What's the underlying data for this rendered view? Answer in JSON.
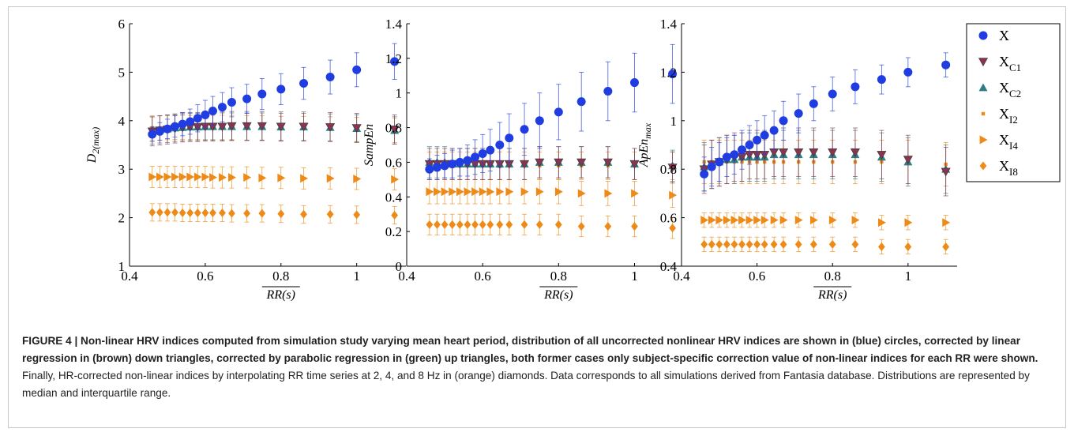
{
  "caption": {
    "bold": "FIGURE 4 | Non-linear HRV indices computed from simulation study varying mean heart period, distribution of all uncorrected nonlinear HRV indices are shown in (blue) circles, corrected by linear regression in (brown) down triangles, corrected by parabolic regression in (green) up triangles, both former cases only subject-specific correction value of non-linear indices for each RR were shown.",
    "normal": " Finally, HR-corrected non-linear indices by interpolating RR time series at 2, 4, and 8 Hz in (orange) diamonds. Data corresponds to all simulations derived from Fantasia database. Distributions are represented by median and interquartile range."
  },
  "colors": {
    "X": "#1f3de0",
    "XC1": "#8a3550",
    "XC2": "#2e7d84",
    "I": "#ee8a17",
    "frame": "#c8c8c8"
  },
  "legend": [
    {
      "main": "X",
      "sub": "",
      "marker": "circle",
      "color": "#1f3de0"
    },
    {
      "main": "X",
      "sub": "C1",
      "marker": "down-triangle",
      "color": "#8a3550"
    },
    {
      "main": "X",
      "sub": "C2",
      "marker": "up-triangle",
      "color": "#2e7d84"
    },
    {
      "main": "X",
      "sub": "I2",
      "marker": "square",
      "color": "#ee8a17"
    },
    {
      "main": "X",
      "sub": "I4",
      "marker": "right-triangle",
      "color": "#ee8a17"
    },
    {
      "main": "X",
      "sub": "I8",
      "marker": "diamond",
      "color": "#ee8a17"
    }
  ],
  "chart_data": [
    {
      "type": "scatter",
      "ylabel_main": "D",
      "ylabel_sub": "2(max)",
      "xlabel": "RR(s)",
      "xlim": [
        0.4,
        1.13
      ],
      "ylim": [
        1,
        6
      ],
      "xticks": [
        "0.4",
        "0.6",
        "0.8",
        "1"
      ],
      "yticks": [
        "1",
        "2",
        "3",
        "4",
        "5",
        "6"
      ],
      "x": [
        0.46,
        0.48,
        0.5,
        0.52,
        0.54,
        0.56,
        0.58,
        0.6,
        0.62,
        0.645,
        0.67,
        0.71,
        0.75,
        0.8,
        0.86,
        0.93,
        1.0,
        1.1
      ],
      "series": [
        {
          "name": "X",
          "values": [
            3.72,
            3.78,
            3.83,
            3.88,
            3.93,
            3.98,
            4.05,
            4.12,
            4.2,
            4.28,
            4.38,
            4.45,
            4.55,
            4.65,
            4.77,
            4.9,
            5.05,
            5.22
          ],
          "err": [
            0.15,
            0.18,
            0.2,
            0.22,
            0.24,
            0.26,
            0.28,
            0.3,
            0.3,
            0.3,
            0.3,
            0.3,
            0.32,
            0.32,
            0.33,
            0.35,
            0.35,
            0.37
          ]
        },
        {
          "name": "X_C1",
          "values": [
            3.78,
            3.8,
            3.82,
            3.84,
            3.86,
            3.87,
            3.87,
            3.88,
            3.88,
            3.88,
            3.89,
            3.89,
            3.89,
            3.88,
            3.88,
            3.87,
            3.85,
            3.82
          ],
          "err": [
            0.3,
            0.3,
            0.3,
            0.3,
            0.3,
            0.3,
            0.3,
            0.3,
            0.3,
            0.3,
            0.3,
            0.3,
            0.3,
            0.3,
            0.3,
            0.3,
            0.3,
            0.3
          ]
        },
        {
          "name": "X_C2",
          "values": [
            3.8,
            3.82,
            3.83,
            3.85,
            3.86,
            3.87,
            3.87,
            3.88,
            3.88,
            3.88,
            3.88,
            3.88,
            3.88,
            3.87,
            3.87,
            3.86,
            3.84,
            3.8
          ],
          "err": [
            0.28,
            0.28,
            0.28,
            0.28,
            0.28,
            0.28,
            0.28,
            0.28,
            0.28,
            0.28,
            0.28,
            0.28,
            0.28,
            0.28,
            0.28,
            0.28,
            0.28,
            0.28
          ]
        },
        {
          "name": "X_I2",
          "values": [
            3.85,
            3.85,
            3.86,
            3.86,
            3.86,
            3.86,
            3.86,
            3.86,
            3.86,
            3.86,
            3.86,
            3.85,
            3.85,
            3.84,
            3.84,
            3.83,
            3.82,
            3.8
          ],
          "err": [
            0.25,
            0.25,
            0.25,
            0.25,
            0.25,
            0.25,
            0.25,
            0.25,
            0.25,
            0.25,
            0.25,
            0.25,
            0.25,
            0.25,
            0.25,
            0.25,
            0.25,
            0.25
          ]
        },
        {
          "name": "X_I4",
          "values": [
            2.84,
            2.84,
            2.84,
            2.84,
            2.84,
            2.84,
            2.84,
            2.84,
            2.83,
            2.83,
            2.83,
            2.83,
            2.82,
            2.82,
            2.81,
            2.81,
            2.8,
            2.79
          ],
          "err": [
            0.22,
            0.22,
            0.22,
            0.22,
            0.22,
            0.22,
            0.22,
            0.22,
            0.22,
            0.22,
            0.22,
            0.22,
            0.22,
            0.22,
            0.22,
            0.22,
            0.22,
            0.22
          ]
        },
        {
          "name": "X_I8",
          "values": [
            2.11,
            2.11,
            2.11,
            2.11,
            2.1,
            2.1,
            2.1,
            2.1,
            2.1,
            2.1,
            2.09,
            2.09,
            2.09,
            2.08,
            2.07,
            2.07,
            2.06,
            2.05
          ],
          "err": [
            0.18,
            0.18,
            0.18,
            0.18,
            0.18,
            0.18,
            0.18,
            0.18,
            0.18,
            0.18,
            0.18,
            0.18,
            0.18,
            0.18,
            0.18,
            0.18,
            0.18,
            0.18
          ]
        }
      ]
    },
    {
      "type": "scatter",
      "ylabel_main": "SampEn",
      "ylabel_sub": "",
      "xlabel": "RR(s)",
      "xlim": [
        0.4,
        1.13
      ],
      "ylim": [
        0,
        1.4
      ],
      "xticks": [
        "0.4",
        "0.6",
        "0.8",
        "1"
      ],
      "yticks": [
        "0",
        "0.2",
        "0.4",
        "0.6",
        "0.8",
        "1",
        "1.2",
        "1.4"
      ],
      "x": [
        0.46,
        0.48,
        0.5,
        0.52,
        0.54,
        0.56,
        0.58,
        0.6,
        0.62,
        0.645,
        0.67,
        0.71,
        0.75,
        0.8,
        0.86,
        0.93,
        1.0,
        1.1
      ],
      "series": [
        {
          "name": "X",
          "values": [
            0.56,
            0.57,
            0.58,
            0.59,
            0.6,
            0.61,
            0.63,
            0.65,
            0.67,
            0.7,
            0.74,
            0.79,
            0.84,
            0.89,
            0.95,
            1.01,
            1.06,
            1.11
          ],
          "err": [
            0.06,
            0.07,
            0.07,
            0.08,
            0.08,
            0.09,
            0.1,
            0.11,
            0.12,
            0.13,
            0.14,
            0.15,
            0.16,
            0.16,
            0.17,
            0.17,
            0.17,
            0.17
          ]
        },
        {
          "name": "X_C1",
          "values": [
            0.59,
            0.59,
            0.59,
            0.59,
            0.59,
            0.59,
            0.59,
            0.59,
            0.59,
            0.59,
            0.59,
            0.59,
            0.6,
            0.6,
            0.6,
            0.6,
            0.59,
            0.57
          ],
          "err": [
            0.09,
            0.09,
            0.09,
            0.09,
            0.09,
            0.09,
            0.09,
            0.09,
            0.09,
            0.09,
            0.09,
            0.09,
            0.09,
            0.09,
            0.09,
            0.09,
            0.09,
            0.09
          ]
        },
        {
          "name": "X_C2",
          "values": [
            0.6,
            0.6,
            0.6,
            0.59,
            0.59,
            0.59,
            0.59,
            0.59,
            0.59,
            0.59,
            0.59,
            0.59,
            0.6,
            0.6,
            0.6,
            0.6,
            0.59,
            0.58
          ],
          "err": [
            0.09,
            0.09,
            0.09,
            0.09,
            0.09,
            0.09,
            0.09,
            0.09,
            0.09,
            0.09,
            0.09,
            0.09,
            0.09,
            0.09,
            0.09,
            0.09,
            0.09,
            0.09
          ]
        },
        {
          "name": "X_I2",
          "values": [
            0.58,
            0.58,
            0.58,
            0.58,
            0.58,
            0.58,
            0.58,
            0.58,
            0.58,
            0.58,
            0.58,
            0.58,
            0.58,
            0.58,
            0.58,
            0.58,
            0.58,
            0.58
          ],
          "err": [
            0.08,
            0.08,
            0.08,
            0.08,
            0.08,
            0.08,
            0.08,
            0.08,
            0.08,
            0.08,
            0.08,
            0.08,
            0.08,
            0.08,
            0.08,
            0.08,
            0.08,
            0.08
          ]
        },
        {
          "name": "X_I4",
          "values": [
            0.43,
            0.43,
            0.43,
            0.43,
            0.43,
            0.43,
            0.43,
            0.43,
            0.43,
            0.43,
            0.43,
            0.43,
            0.43,
            0.43,
            0.42,
            0.42,
            0.42,
            0.41
          ],
          "err": [
            0.07,
            0.07,
            0.07,
            0.07,
            0.07,
            0.07,
            0.07,
            0.07,
            0.07,
            0.07,
            0.07,
            0.07,
            0.07,
            0.07,
            0.07,
            0.07,
            0.07,
            0.07
          ]
        },
        {
          "name": "X_I8",
          "values": [
            0.24,
            0.24,
            0.24,
            0.24,
            0.24,
            0.24,
            0.24,
            0.24,
            0.24,
            0.24,
            0.24,
            0.24,
            0.24,
            0.24,
            0.23,
            0.23,
            0.23,
            0.22
          ],
          "err": [
            0.06,
            0.06,
            0.06,
            0.06,
            0.06,
            0.06,
            0.06,
            0.06,
            0.06,
            0.06,
            0.06,
            0.06,
            0.06,
            0.06,
            0.06,
            0.06,
            0.06,
            0.06
          ]
        }
      ]
    },
    {
      "type": "scatter",
      "ylabel_main": "ApEn",
      "ylabel_sub": "max",
      "xlabel": "RR(s)",
      "xlim": [
        0.4,
        1.13
      ],
      "ylim": [
        0.4,
        1.4
      ],
      "xticks": [
        "0.4",
        "0.6",
        "0.8",
        "1"
      ],
      "yticks": [
        "0.4",
        "0.6",
        "0.8",
        "1",
        "1.2",
        "1.4"
      ],
      "x": [
        0.46,
        0.48,
        0.5,
        0.52,
        0.54,
        0.56,
        0.58,
        0.6,
        0.62,
        0.645,
        0.67,
        0.71,
        0.75,
        0.8,
        0.86,
        0.93,
        1.0,
        1.1
      ],
      "series": [
        {
          "name": "X",
          "values": [
            0.78,
            0.81,
            0.83,
            0.85,
            0.86,
            0.88,
            0.9,
            0.92,
            0.94,
            0.96,
            1.0,
            1.03,
            1.07,
            1.11,
            1.14,
            1.17,
            1.2,
            1.23
          ],
          "err": [
            0.07,
            0.08,
            0.08,
            0.08,
            0.08,
            0.08,
            0.08,
            0.08,
            0.08,
            0.08,
            0.08,
            0.08,
            0.07,
            0.07,
            0.07,
            0.06,
            0.06,
            0.05
          ]
        },
        {
          "name": "X_C1",
          "values": [
            0.8,
            0.82,
            0.83,
            0.84,
            0.85,
            0.85,
            0.86,
            0.86,
            0.86,
            0.87,
            0.87,
            0.87,
            0.87,
            0.87,
            0.87,
            0.86,
            0.84,
            0.79
          ],
          "err": [
            0.1,
            0.1,
            0.1,
            0.1,
            0.1,
            0.1,
            0.1,
            0.1,
            0.1,
            0.1,
            0.1,
            0.1,
            0.1,
            0.1,
            0.1,
            0.1,
            0.1,
            0.1
          ]
        },
        {
          "name": "X_C2",
          "values": [
            0.81,
            0.82,
            0.83,
            0.84,
            0.84,
            0.85,
            0.85,
            0.85,
            0.85,
            0.86,
            0.86,
            0.86,
            0.86,
            0.86,
            0.86,
            0.85,
            0.83,
            0.8
          ],
          "err": [
            0.1,
            0.1,
            0.1,
            0.1,
            0.1,
            0.1,
            0.1,
            0.1,
            0.1,
            0.1,
            0.1,
            0.1,
            0.1,
            0.1,
            0.1,
            0.1,
            0.1,
            0.1
          ]
        },
        {
          "name": "X_I2",
          "values": [
            0.83,
            0.83,
            0.83,
            0.83,
            0.83,
            0.83,
            0.83,
            0.83,
            0.83,
            0.83,
            0.83,
            0.83,
            0.83,
            0.83,
            0.83,
            0.83,
            0.83,
            0.82
          ],
          "err": [
            0.09,
            0.09,
            0.09,
            0.09,
            0.09,
            0.09,
            0.09,
            0.09,
            0.09,
            0.09,
            0.09,
            0.09,
            0.09,
            0.09,
            0.09,
            0.09,
            0.09,
            0.09
          ]
        },
        {
          "name": "X_I4",
          "values": [
            0.59,
            0.59,
            0.59,
            0.59,
            0.59,
            0.59,
            0.59,
            0.59,
            0.59,
            0.59,
            0.59,
            0.59,
            0.59,
            0.59,
            0.59,
            0.58,
            0.58,
            0.58
          ],
          "err": [
            0.03,
            0.03,
            0.03,
            0.03,
            0.03,
            0.03,
            0.03,
            0.03,
            0.03,
            0.03,
            0.03,
            0.03,
            0.03,
            0.03,
            0.03,
            0.03,
            0.03,
            0.03
          ]
        },
        {
          "name": "X_I8",
          "values": [
            0.49,
            0.49,
            0.49,
            0.49,
            0.49,
            0.49,
            0.49,
            0.49,
            0.49,
            0.49,
            0.49,
            0.49,
            0.49,
            0.49,
            0.49,
            0.48,
            0.48,
            0.48
          ],
          "err": [
            0.03,
            0.03,
            0.03,
            0.03,
            0.03,
            0.03,
            0.03,
            0.03,
            0.03,
            0.03,
            0.03,
            0.03,
            0.03,
            0.03,
            0.03,
            0.03,
            0.03,
            0.03
          ]
        }
      ]
    }
  ]
}
